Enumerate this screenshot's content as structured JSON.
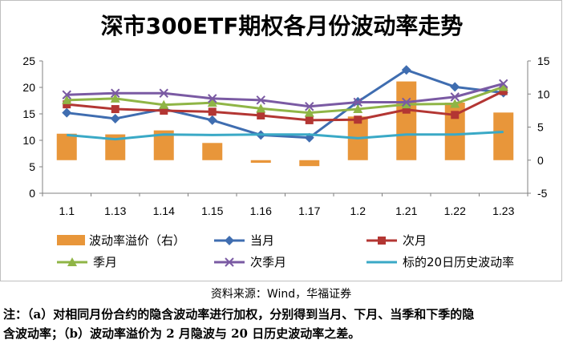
{
  "title": "深市300ETF期权各月份波动率走势",
  "source": "资料来源：Wind，华福证券",
  "note": {
    "line1": "注：（a）对相同月份合约的隐含波动率进行加权，分别得到当月、下月、当季和下季的隐",
    "line2": "含波动率；（b）波动率溢价为 2 月隐波与 20 日历史波动率之差。"
  },
  "chart_data": {
    "type": "bar+line",
    "categories": [
      "1.1",
      "1.13",
      "1.14",
      "1.15",
      "1.16",
      "1.17",
      "1.2",
      "1.21",
      "1.22",
      "1.23"
    ],
    "left_axis": {
      "min": 0,
      "max": 25,
      "ticks": [
        0,
        5,
        10,
        15,
        20,
        25
      ]
    },
    "right_axis": {
      "min": -5,
      "max": 15,
      "ticks": [
        -5,
        0,
        5,
        10,
        15
      ]
    },
    "bars": {
      "name": "波动率溢价（右）",
      "axis": "right",
      "color": "#e8963a",
      "values": [
        4.0,
        3.9,
        4.5,
        2.6,
        -0.4,
        -0.9,
        6.6,
        11.9,
        8.7,
        7.2
      ]
    },
    "series": [
      {
        "name": "当月",
        "axis": "left",
        "color": "#3f6db0",
        "marker": "diamond",
        "values": [
          15.2,
          14.1,
          15.9,
          13.8,
          11.0,
          10.5,
          17.3,
          23.3,
          20.1,
          19.0
        ]
      },
      {
        "name": "次月",
        "axis": "left",
        "color": "#b33633",
        "marker": "square",
        "values": [
          16.8,
          15.9,
          15.6,
          15.4,
          14.7,
          13.8,
          13.9,
          15.8,
          14.8,
          19.3
        ]
      },
      {
        "name": "季月",
        "axis": "left",
        "color": "#8fb546",
        "marker": "triangle",
        "values": [
          17.6,
          17.9,
          16.7,
          17.1,
          16.0,
          15.2,
          15.9,
          16.8,
          16.9,
          20.1
        ]
      },
      {
        "name": "次季月",
        "axis": "left",
        "color": "#7a5aa3",
        "marker": "x",
        "values": [
          18.6,
          18.9,
          18.9,
          17.9,
          17.6,
          16.4,
          17.2,
          17.2,
          18.2,
          20.7
        ]
      },
      {
        "name": "标的20日历史波动率",
        "axis": "left",
        "color": "#3aa9c6",
        "marker": "none",
        "values": [
          11.0,
          10.2,
          11.1,
          11.0,
          11.1,
          11.1,
          10.4,
          11.1,
          11.1,
          11.6
        ]
      }
    ],
    "legend": [
      "波动率溢价（右）",
      "当月",
      "次月",
      "季月",
      "次季月",
      "标的20日历史波动率"
    ],
    "legend_position": "bottom",
    "grid": false
  }
}
